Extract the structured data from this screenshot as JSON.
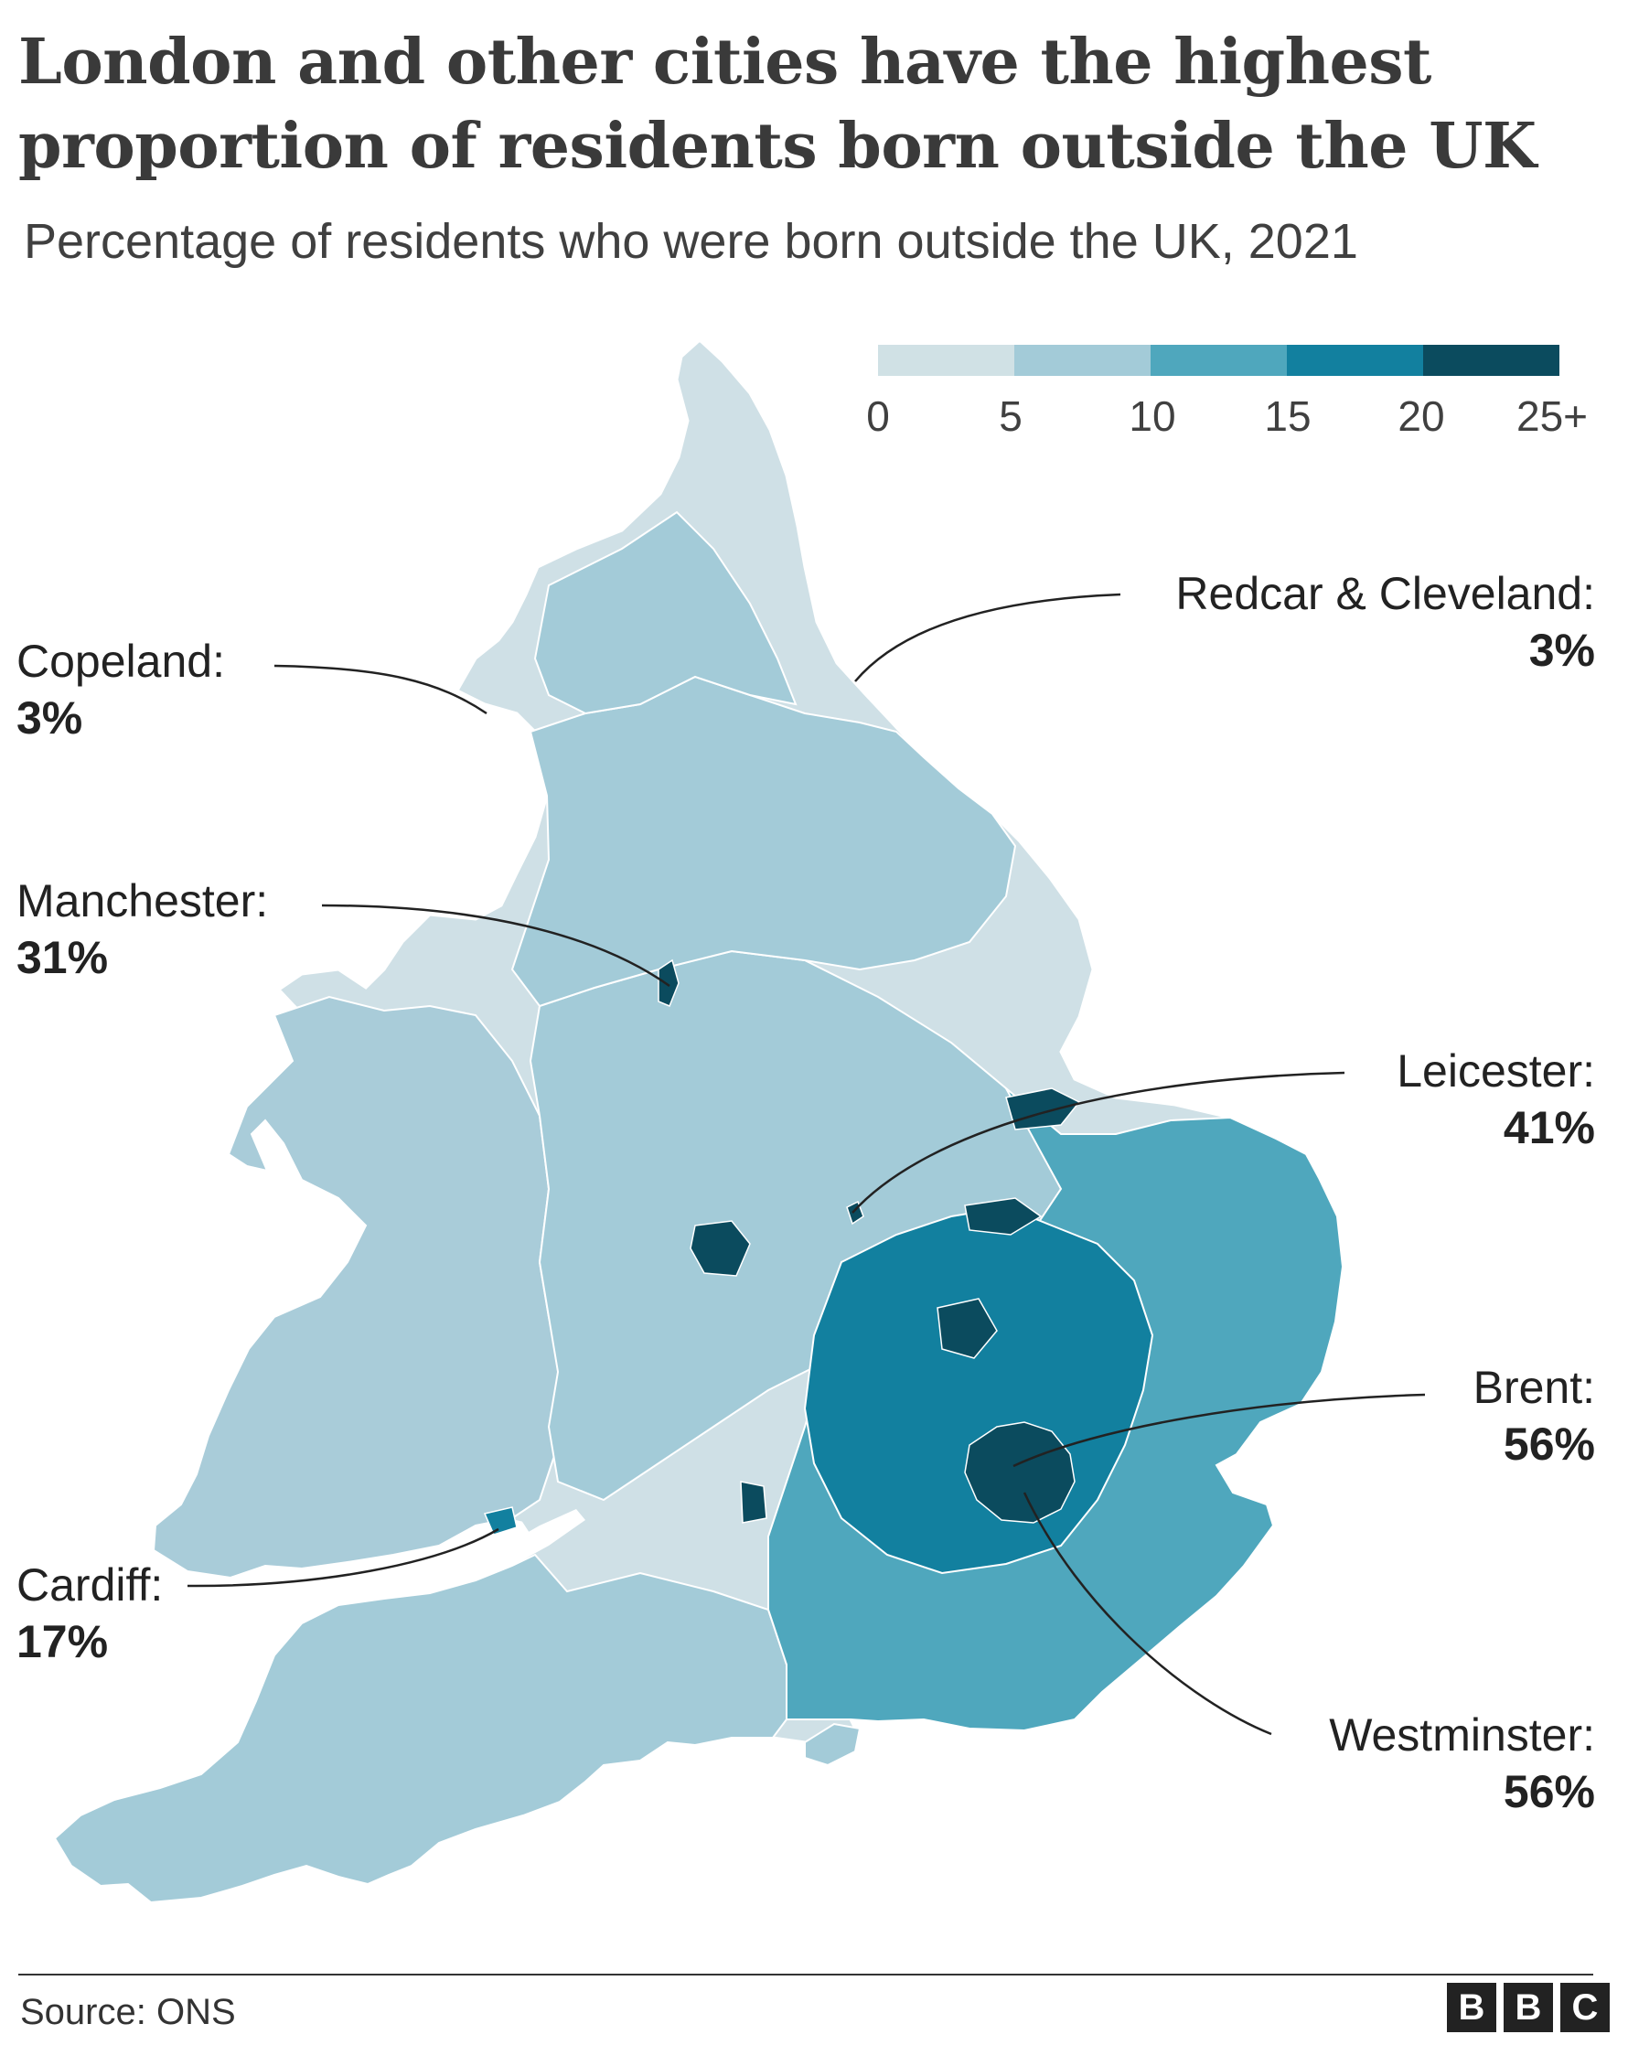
{
  "title": "London and other cities have the highest proportion of residents born outside the UK",
  "subtitle": "Percentage of residents who were born outside the UK, 2021",
  "legend": {
    "ticks": [
      "0",
      "5",
      "10",
      "15",
      "20",
      "25+"
    ],
    "colors": [
      "#d0e1e5",
      "#a3cbd8",
      "#4fa7bd",
      "#12809f",
      "#0b4b5e"
    ]
  },
  "land_colors": {
    "land": "#cfe0e6",
    "wales": "#a9ccd9",
    "midlands": "#a3cbd8",
    "south_east": "#4fa7bd",
    "home_counties": "#12809f",
    "london": "#0b4b5e",
    "border": "#ffffff"
  },
  "callouts": [
    {
      "name": "Copeland:",
      "value": "3%"
    },
    {
      "name": "Redcar & Cleveland:",
      "value": "3%"
    },
    {
      "name": "Manchester:",
      "value": "31%"
    },
    {
      "name": "Leicester:",
      "value": "41%"
    },
    {
      "name": "Brent:",
      "value": "56%"
    },
    {
      "name": "Cardiff:",
      "value": "17%"
    },
    {
      "name": "Westminster:",
      "value": "56%"
    }
  ],
  "footer": {
    "source": "Source: ONS",
    "logo_letters": [
      "B",
      "B",
      "C"
    ]
  }
}
